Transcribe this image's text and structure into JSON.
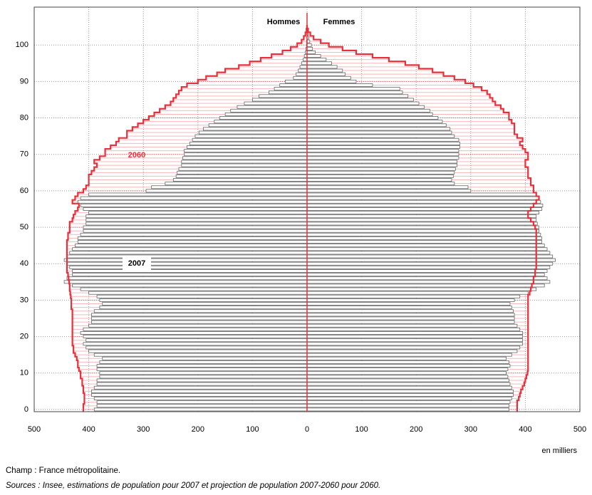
{
  "chart_data": {
    "type": "pyramid",
    "side_labels": [
      "Hommes",
      "Femmes"
    ],
    "x_unit_label": "en milliers",
    "xlim": [
      0,
      500
    ],
    "xticks": [
      0,
      100,
      200,
      300,
      400,
      500
    ],
    "ylim": [
      -0.6,
      110.4
    ],
    "yticks": [
      0,
      10,
      20,
      30,
      40,
      50,
      60,
      70,
      80,
      90,
      100
    ],
    "grid": true,
    "ages": [
      0,
      1,
      2,
      3,
      4,
      5,
      6,
      7,
      8,
      9,
      10,
      11,
      12,
      13,
      14,
      15,
      16,
      17,
      18,
      19,
      20,
      21,
      22,
      23,
      24,
      25,
      26,
      27,
      28,
      29,
      30,
      31,
      32,
      33,
      34,
      35,
      36,
      37,
      38,
      39,
      40,
      41,
      42,
      43,
      44,
      45,
      46,
      47,
      48,
      49,
      50,
      51,
      52,
      53,
      54,
      55,
      56,
      57,
      58,
      59,
      60,
      61,
      62,
      63,
      64,
      65,
      66,
      67,
      68,
      69,
      70,
      71,
      72,
      73,
      74,
      75,
      76,
      77,
      78,
      79,
      80,
      81,
      82,
      83,
      84,
      85,
      86,
      87,
      88,
      89,
      90,
      91,
      92,
      93,
      94,
      95,
      96,
      97,
      98,
      99,
      100,
      101,
      102,
      103,
      104,
      105
    ],
    "series": [
      {
        "name": "2007",
        "color": "#666666",
        "style": "bars",
        "men": [
          390,
          385,
          385,
          390,
          395,
          395,
          390,
          385,
          385,
          380,
          380,
          385,
          385,
          380,
          375,
          390,
          400,
          405,
          410,
          405,
          410,
          415,
          410,
          400,
          395,
          395,
          395,
          390,
          380,
          375,
          380,
          385,
          400,
          415,
          430,
          445,
          440,
          430,
          430,
          435,
          440,
          445,
          440,
          435,
          430,
          425,
          420,
          420,
          415,
          410,
          410,
          405,
          405,
          405,
          400,
          410,
          415,
          420,
          415,
          400,
          295,
          285,
          260,
          245,
          240,
          238,
          235,
          230,
          230,
          228,
          225,
          225,
          220,
          215,
          210,
          205,
          198,
          190,
          180,
          170,
          160,
          150,
          140,
          128,
          115,
          100,
          88,
          70,
          60,
          50,
          40,
          25,
          20,
          16,
          13,
          10,
          7,
          5,
          3,
          2,
          1,
          1,
          0,
          0,
          0,
          0
        ],
        "women": [
          370,
          370,
          372,
          375,
          378,
          378,
          375,
          372,
          370,
          368,
          365,
          368,
          372,
          370,
          365,
          375,
          385,
          390,
          395,
          395,
          395,
          395,
          390,
          385,
          380,
          380,
          380,
          378,
          375,
          372,
          380,
          390,
          405,
          420,
          435,
          445,
          440,
          435,
          440,
          445,
          450,
          455,
          450,
          445,
          440,
          435,
          430,
          430,
          428,
          425,
          425,
          422,
          420,
          420,
          425,
          430,
          432,
          428,
          425,
          420,
          300,
          295,
          270,
          265,
          268,
          270,
          272,
          275,
          275,
          278,
          278,
          278,
          280,
          280,
          278,
          270,
          265,
          262,
          255,
          248,
          240,
          230,
          225,
          215,
          205,
          195,
          185,
          175,
          170,
          120,
          90,
          80,
          70,
          65,
          55,
          45,
          35,
          25,
          15,
          10,
          8,
          5,
          3,
          2,
          1,
          0
        ]
      },
      {
        "name": "2060",
        "color": "#e8303a",
        "style": "steps",
        "men": [
          410,
          410,
          408,
          408,
          408,
          410,
          410,
          412,
          412,
          415,
          415,
          418,
          420,
          420,
          422,
          425,
          428,
          428,
          430,
          430,
          430,
          430,
          430,
          430,
          430,
          430,
          430,
          430,
          432,
          432,
          432,
          433,
          434,
          435,
          435,
          436,
          437,
          438,
          440,
          440,
          440,
          440,
          440,
          440,
          440,
          440,
          440,
          438,
          438,
          435,
          435,
          435,
          430,
          428,
          425,
          420,
          418,
          430,
          425,
          420,
          410,
          405,
          400,
          400,
          400,
          395,
          390,
          385,
          390,
          380,
          370,
          370,
          360,
          350,
          345,
          330,
          330,
          320,
          310,
          300,
          290,
          280,
          270,
          260,
          250,
          245,
          240,
          235,
          230,
          220,
          200,
          185,
          165,
          150,
          125,
          105,
          85,
          65,
          45,
          30,
          18,
          10,
          6,
          3,
          1,
          0
        ],
        "women": [
          385,
          385,
          385,
          388,
          390,
          392,
          395,
          398,
          400,
          402,
          404,
          405,
          405,
          405,
          405,
          405,
          405,
          405,
          405,
          405,
          405,
          405,
          405,
          405,
          405,
          405,
          405,
          405,
          405,
          405,
          405,
          405,
          408,
          410,
          412,
          415,
          415,
          418,
          418,
          420,
          420,
          420,
          420,
          420,
          420,
          420,
          420,
          420,
          420,
          420,
          418,
          415,
          410,
          405,
          405,
          410,
          415,
          420,
          425,
          420,
          415,
          415,
          410,
          410,
          405,
          405,
          405,
          400,
          400,
          405,
          405,
          400,
          395,
          390,
          395,
          385,
          380,
          380,
          380,
          375,
          370,
          370,
          360,
          355,
          345,
          340,
          335,
          330,
          320,
          305,
          290,
          270,
          250,
          230,
          205,
          180,
          150,
          120,
          90,
          65,
          40,
          25,
          12,
          6,
          2,
          0
        ]
      }
    ],
    "notes": [
      "Champ : France métropolitaine.",
      "Sources : Insee, estimations de population pour 2007 et projection de population 2007-2060 pour 2060."
    ]
  }
}
